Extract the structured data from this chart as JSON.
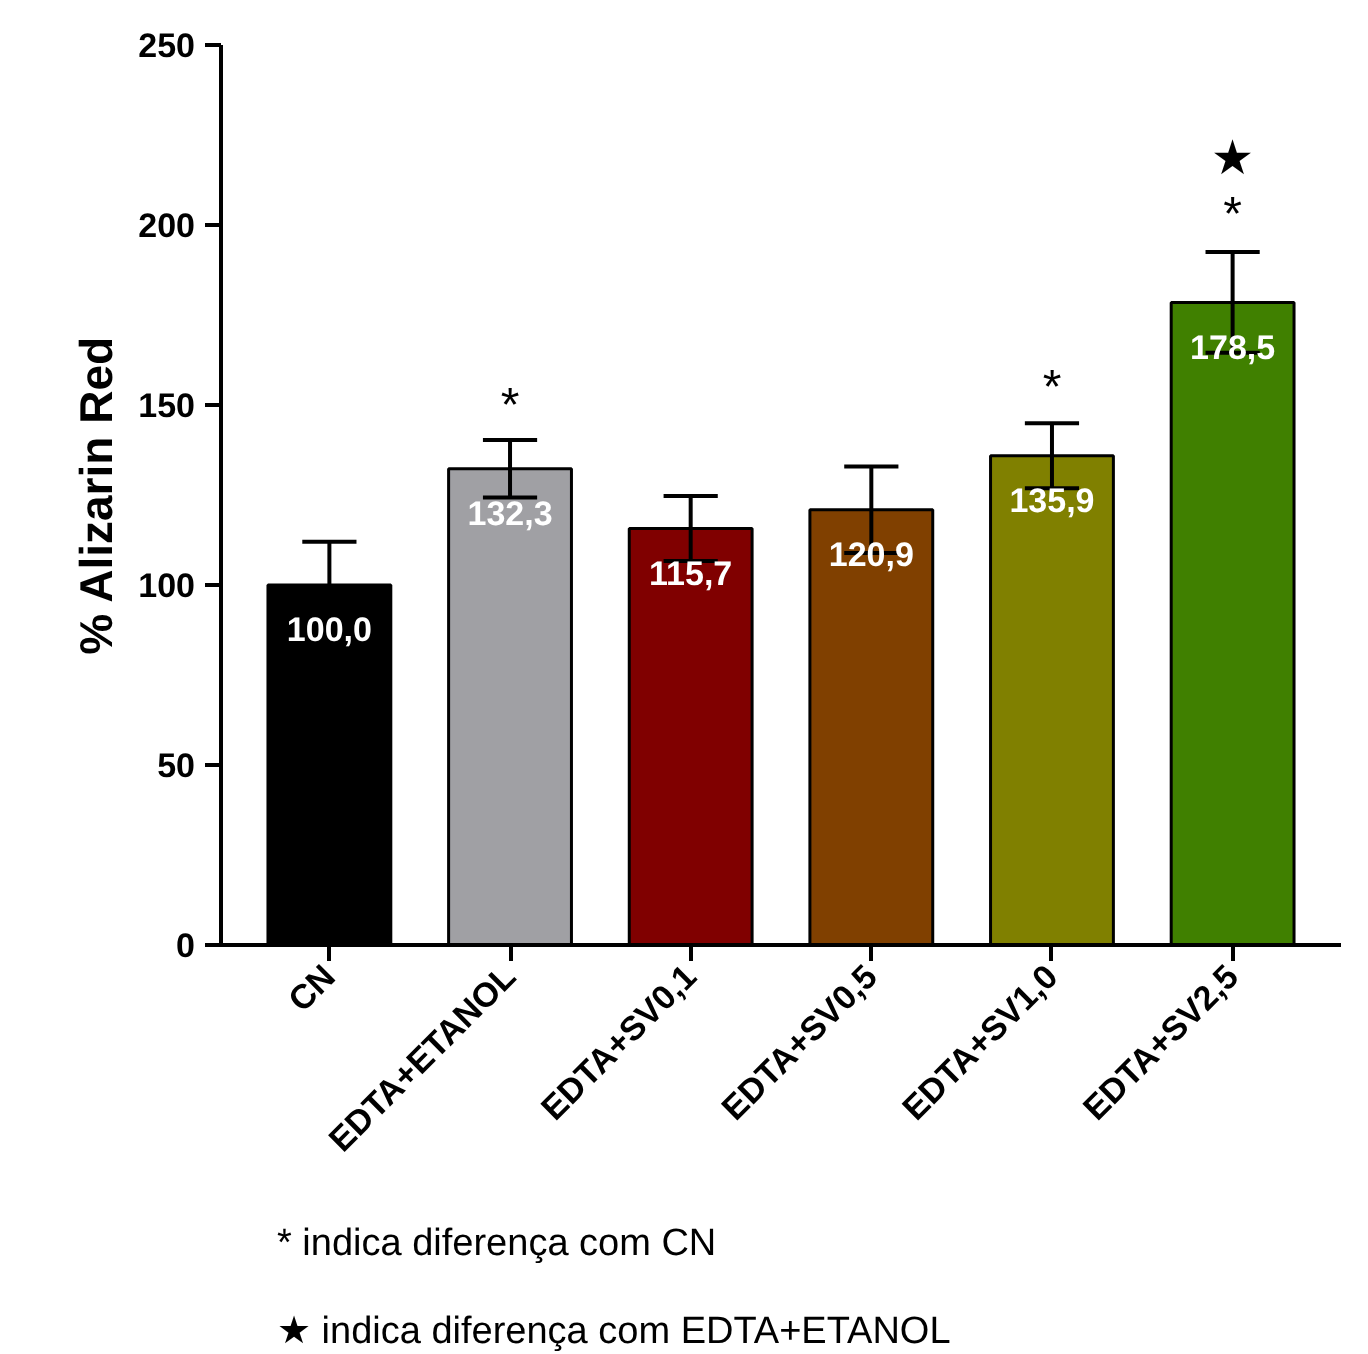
{
  "chart_data": {
    "type": "bar",
    "ylabel": "% Alizarin Red",
    "categories": [
      "CN",
      "EDTA+ETANOL",
      "EDTA+SV0,1",
      "EDTA+SV0,5",
      "EDTA+SV1,0",
      "EDTA+SV2,5"
    ],
    "values": [
      100.0,
      132.3,
      115.7,
      120.9,
      135.9,
      178.5
    ],
    "colors": [
      "#000000",
      "#a0a0a4",
      "#800000",
      "#804000",
      "#808000",
      "#408000"
    ],
    "errors": [
      12,
      8,
      9,
      12,
      9,
      14
    ],
    "ylim": [
      0,
      250
    ],
    "yticks": [
      0,
      50,
      100,
      150,
      200,
      250
    ],
    "value_labels": [
      "100,0",
      "132,3",
      "115,7",
      "120,9",
      "135,9",
      "178,5"
    ],
    "grid": false,
    "annotations": [
      {
        "text": "*",
        "x": "EDTA+ETANOL",
        "y": 140
      },
      {
        "text": "*",
        "x": "EDTA+SV1,0",
        "y": 145
      },
      {
        "text": "*",
        "x": "EDTA+SV2,5",
        "y": 193
      },
      {
        "text": "★",
        "x": "EDTA+SV2,5",
        "y": 193
      },
      "* indica diferença com CN",
      "★ indica diferença com EDTA+ETANOL"
    ]
  }
}
